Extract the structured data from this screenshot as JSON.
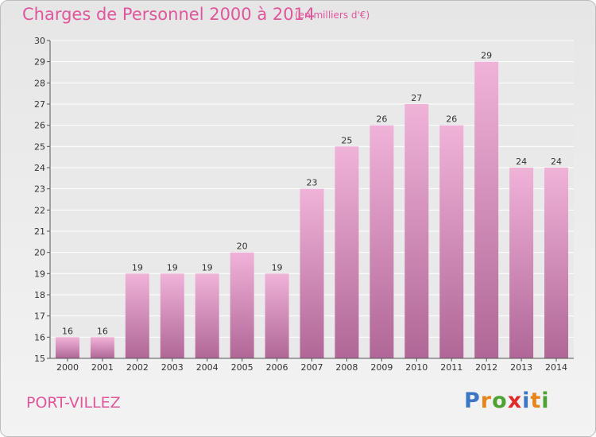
{
  "header": {
    "title": "Charges de Personnel 2000 à 2014",
    "subtitle": "(en milliers d'€)"
  },
  "footer": {
    "town": "PORT-VILLEZ",
    "logo": "Proxiti"
  },
  "colors": {
    "accent": "#e0569b",
    "bar_top": "#f0b3d8",
    "bar_bottom": "#b06797",
    "plot_bg": "#e9e9e9",
    "logo_letters": [
      "#3d77c4",
      "#e8841c",
      "#4ca334",
      "#e02b2b",
      "#3d77c4",
      "#e8841c",
      "#4ca334"
    ]
  },
  "chart_data": {
    "type": "bar",
    "title": "Charges de Personnel 2000 à 2014",
    "subtitle": "(en milliers d'€)",
    "categories": [
      "2000",
      "2001",
      "2002",
      "2003",
      "2004",
      "2005",
      "2006",
      "2007",
      "2008",
      "2009",
      "2010",
      "2011",
      "2012",
      "2013",
      "2014"
    ],
    "values": [
      16,
      16,
      19,
      19,
      19,
      20,
      19,
      23,
      25,
      26,
      27,
      26,
      29,
      24,
      24
    ],
    "ylim": [
      15,
      30
    ],
    "yticks": [
      15,
      16,
      17,
      18,
      19,
      20,
      21,
      22,
      23,
      24,
      25,
      26,
      27,
      28,
      29,
      30
    ],
    "grid": true,
    "legend": "none"
  }
}
